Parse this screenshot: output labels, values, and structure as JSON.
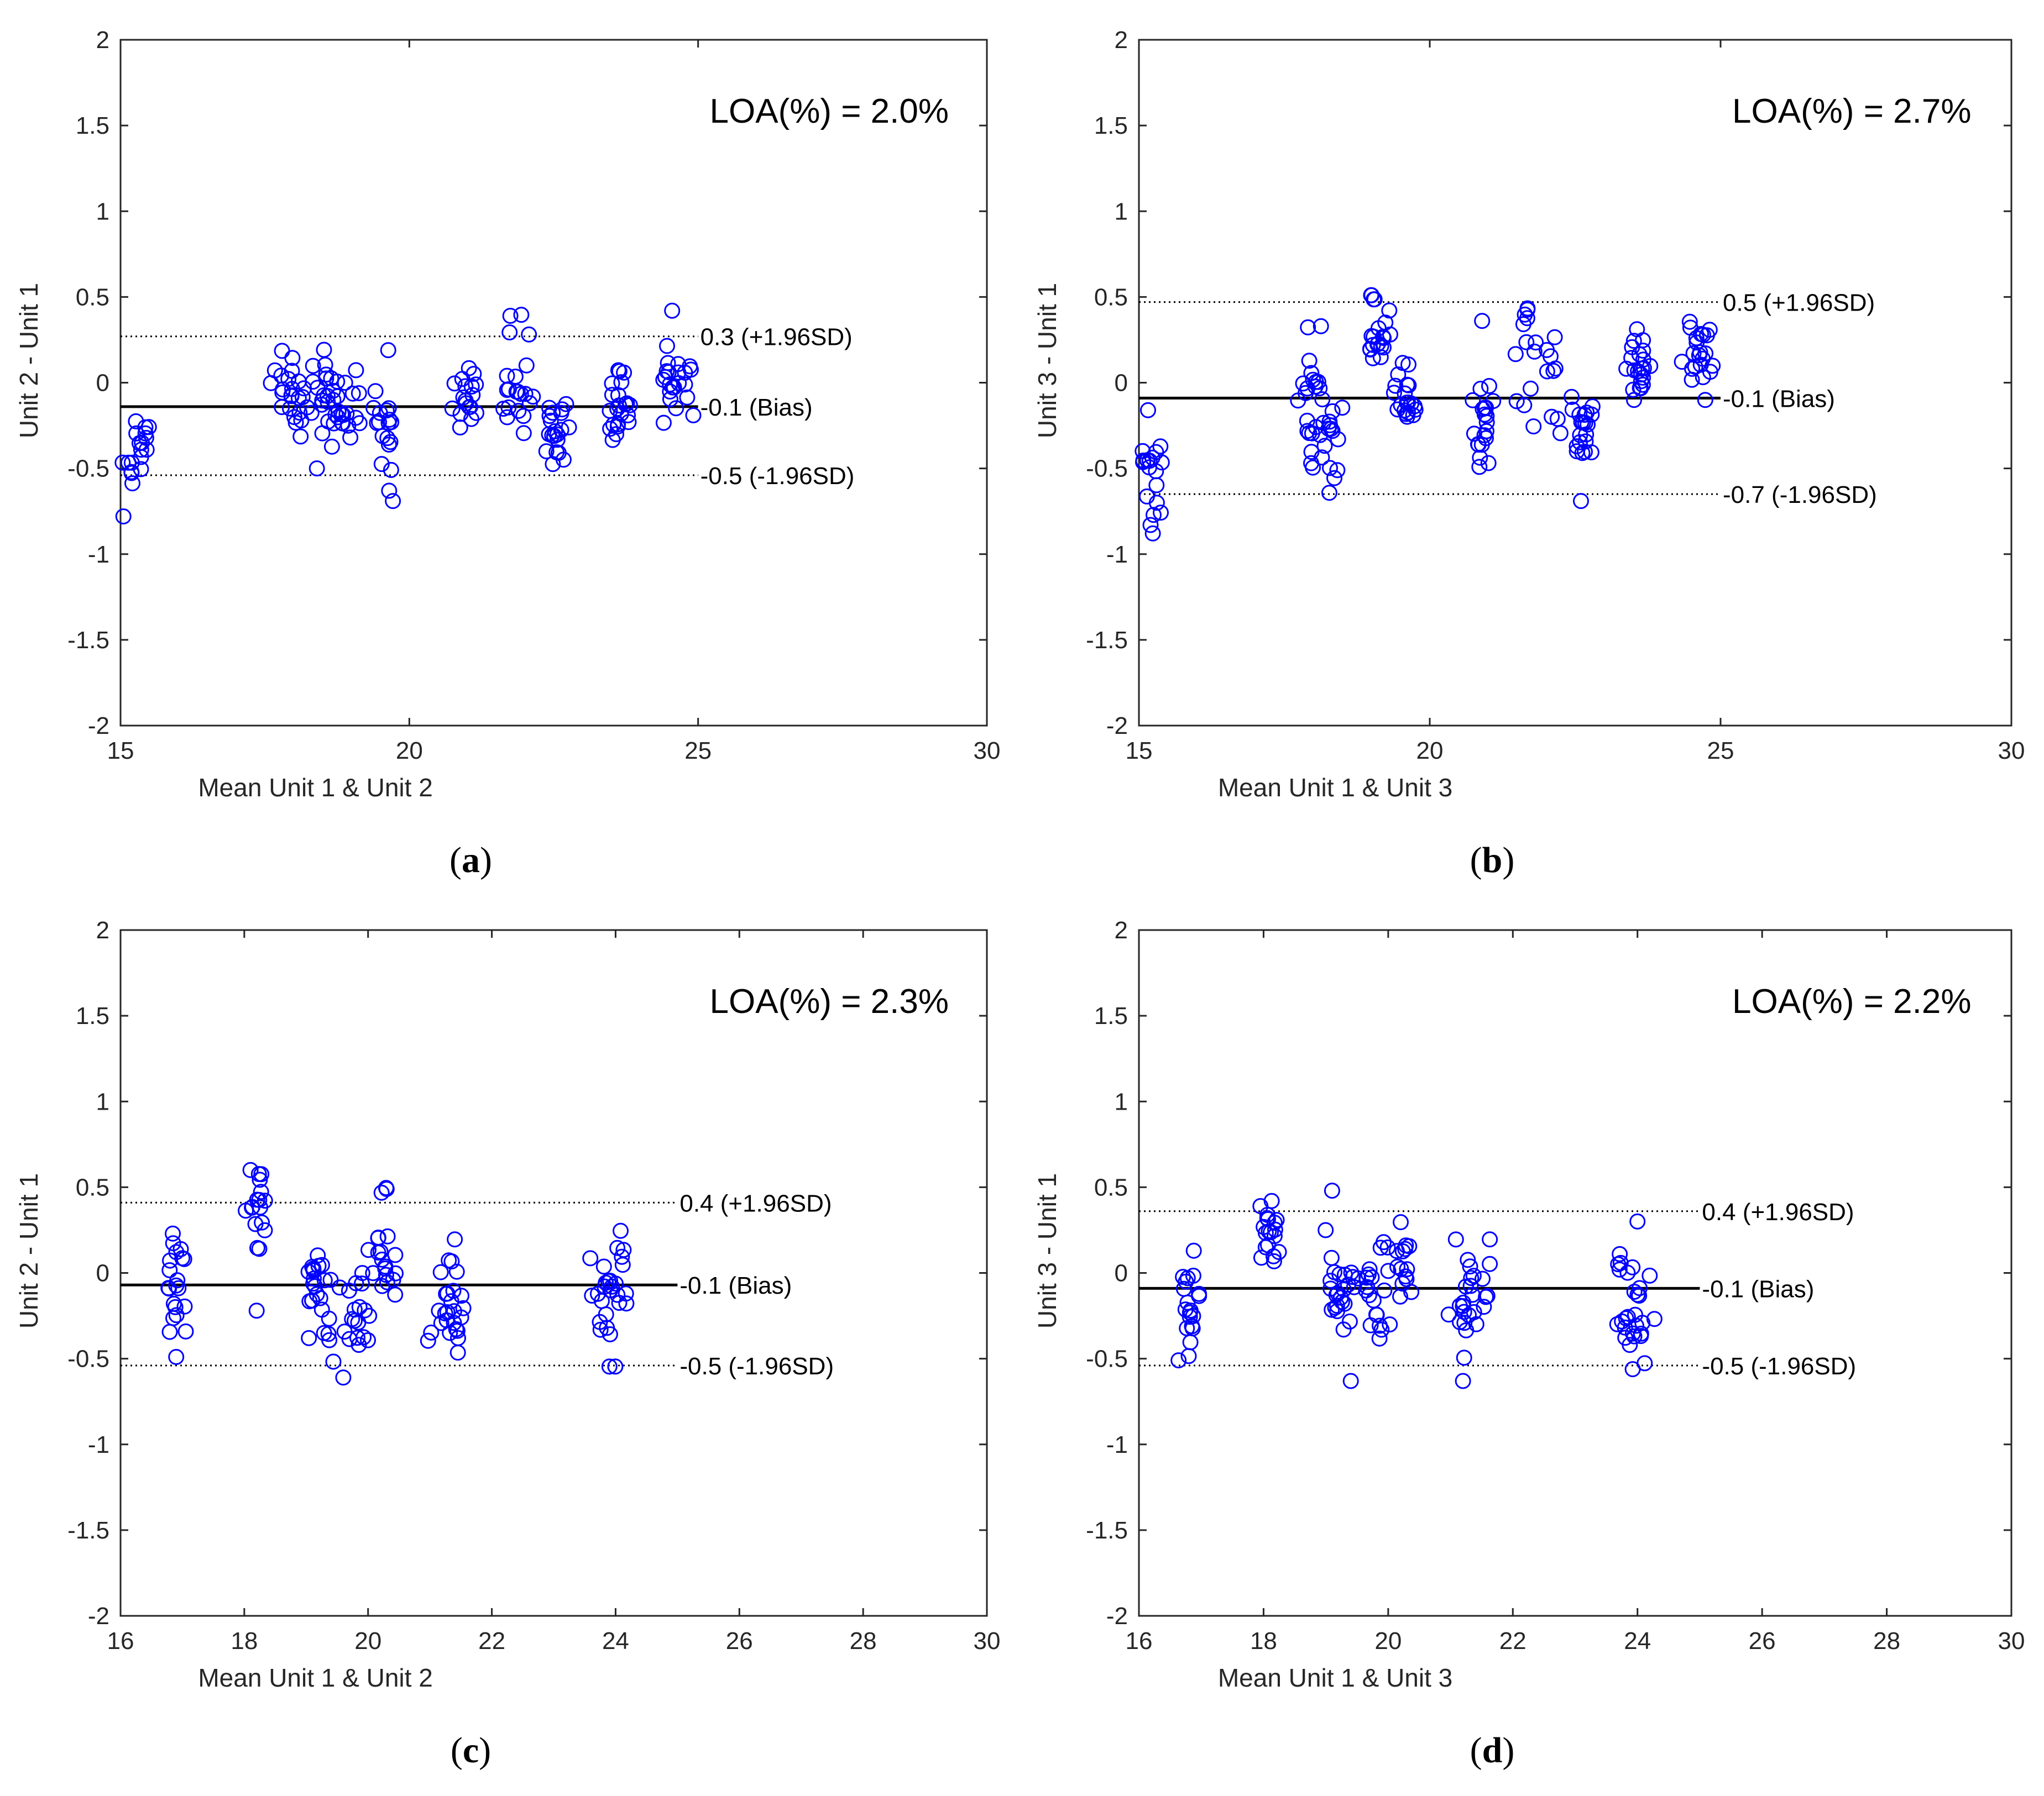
{
  "chart_data": [
    {
      "type": "scatter",
      "panel": "a",
      "caption": "a",
      "annotation": "LOA(%) = 2.0%",
      "xlabel": "Mean Unit 1 & Unit 2",
      "ylabel": "Unit 2 - Unit 1",
      "xlim": [
        15,
        30
      ],
      "ylim": [
        -2,
        2
      ],
      "xticks": [
        "15",
        "20",
        "25",
        "30"
      ],
      "yticks": [
        "-2",
        "-1.5",
        "-1",
        "-0.5",
        "0",
        "0.5",
        "1",
        "1.5",
        "2"
      ],
      "line_end_x": 25,
      "lines": [
        {
          "y": 0.27,
          "style": "dotted",
          "label": "0.3 (+1.96SD)"
        },
        {
          "y": -0.14,
          "style": "solid",
          "label": "-0.1 (Bias)"
        },
        {
          "y": -0.54,
          "style": "dotted",
          "label": "-0.5 (-1.96SD)"
        }
      ],
      "clusters": [
        {
          "x": 15.3,
          "xs": 0.12,
          "y": -0.38,
          "ys": 0.12,
          "n": 18,
          "seed": 11
        },
        {
          "x": 18.0,
          "xs": 0.18,
          "y": -0.05,
          "ys": 0.12,
          "n": 22,
          "seed": 12
        },
        {
          "x": 18.5,
          "xs": 0.2,
          "y": -0.1,
          "ys": 0.14,
          "n": 20,
          "seed": 13
        },
        {
          "x": 19.0,
          "xs": 0.2,
          "y": -0.1,
          "ys": 0.1,
          "n": 20,
          "seed": 14
        },
        {
          "x": 19.6,
          "xs": 0.1,
          "y": -0.25,
          "ys": 0.2,
          "n": 18,
          "seed": 15
        },
        {
          "x": 21.0,
          "xs": 0.12,
          "y": -0.1,
          "ys": 0.1,
          "n": 18,
          "seed": 16
        },
        {
          "x": 21.9,
          "xs": 0.15,
          "y": 0.0,
          "ys": 0.18,
          "n": 20,
          "seed": 17
        },
        {
          "x": 22.5,
          "xs": 0.12,
          "y": -0.33,
          "ys": 0.12,
          "n": 20,
          "seed": 18
        },
        {
          "x": 23.6,
          "xs": 0.1,
          "y": -0.07,
          "ys": 0.12,
          "n": 22,
          "seed": 19
        },
        {
          "x": 24.6,
          "xs": 0.15,
          "y": 0.03,
          "ys": 0.12,
          "n": 22,
          "seed": 20
        }
      ],
      "points": [
        {
          "x": 15.05,
          "y": -0.78
        },
        {
          "x": 21.75,
          "y": 0.39
        },
        {
          "x": 24.55,
          "y": 0.42
        },
        {
          "x": 18.4,
          "y": -0.5
        },
        {
          "x": 19.65,
          "y": -0.63
        }
      ]
    },
    {
      "type": "scatter",
      "panel": "b",
      "caption": "b",
      "annotation": "LOA(%) = 2.7%",
      "xlabel": "Mean Unit 1 & Unit 3",
      "ylabel": "Unit 3 - Unit 1",
      "xlim": [
        15,
        30
      ],
      "ylim": [
        -2,
        2
      ],
      "xticks": [
        "15",
        "20",
        "25",
        "30"
      ],
      "yticks": [
        "-2",
        "-1.5",
        "-1",
        "-0.5",
        "0",
        "0.5",
        "1",
        "1.5",
        "2"
      ],
      "line_end_x": 25,
      "lines": [
        {
          "y": 0.47,
          "style": "dotted",
          "label": "0.5 (+1.96SD)"
        },
        {
          "y": -0.09,
          "style": "solid",
          "label": "-0.1 (Bias)"
        },
        {
          "y": -0.65,
          "style": "dotted",
          "label": "-0.7 (-1.96SD)"
        }
      ],
      "clusters": [
        {
          "x": 15.2,
          "xs": 0.12,
          "y": -0.55,
          "ys": 0.18,
          "n": 18,
          "seed": 31
        },
        {
          "x": 18.0,
          "xs": 0.12,
          "y": -0.1,
          "ys": 0.22,
          "n": 22,
          "seed": 32
        },
        {
          "x": 18.3,
          "xs": 0.1,
          "y": -0.38,
          "ys": 0.15,
          "n": 16,
          "seed": 33
        },
        {
          "x": 19.1,
          "xs": 0.1,
          "y": 0.28,
          "ys": 0.12,
          "n": 20,
          "seed": 34
        },
        {
          "x": 19.6,
          "xs": 0.12,
          "y": -0.12,
          "ys": 0.15,
          "n": 20,
          "seed": 35
        },
        {
          "x": 20.9,
          "xs": 0.1,
          "y": -0.25,
          "ys": 0.12,
          "n": 20,
          "seed": 36
        },
        {
          "x": 21.9,
          "xs": 0.2,
          "y": 0.05,
          "ys": 0.2,
          "n": 22,
          "seed": 37
        },
        {
          "x": 22.6,
          "xs": 0.1,
          "y": -0.25,
          "ys": 0.12,
          "n": 20,
          "seed": 38
        },
        {
          "x": 23.6,
          "xs": 0.1,
          "y": 0.1,
          "ys": 0.1,
          "n": 22,
          "seed": 39
        },
        {
          "x": 24.6,
          "xs": 0.12,
          "y": 0.15,
          "ys": 0.12,
          "n": 22,
          "seed": 40
        }
      ],
      "points": [
        {
          "x": 19.0,
          "y": 0.51
        },
        {
          "x": 20.9,
          "y": 0.36
        },
        {
          "x": 22.6,
          "y": -0.69
        },
        {
          "x": 15.2,
          "y": -0.83
        }
      ]
    },
    {
      "type": "scatter",
      "panel": "c",
      "caption": "c",
      "annotation": "LOA(%) = 2.3%",
      "xlabel": "Mean Unit 1 & Unit 2",
      "ylabel": "Unit 2 - Unit 1",
      "xlim": [
        16,
        30
      ],
      "ylim": [
        -2,
        2
      ],
      "xticks": [
        "16",
        "18",
        "20",
        "22",
        "24",
        "26",
        "28",
        "30"
      ],
      "yticks": [
        "-2",
        "-1.5",
        "-1",
        "-0.5",
        "0",
        "0.5",
        "1",
        "1.5",
        "2"
      ],
      "line_end_x": 25,
      "lines": [
        {
          "y": 0.41,
          "style": "dotted",
          "label": "0.4 (+1.96SD)"
        },
        {
          "y": -0.07,
          "style": "solid",
          "label": "-0.1 (Bias)"
        },
        {
          "y": -0.54,
          "style": "dotted",
          "label": "-0.5 (-1.96SD)"
        }
      ],
      "clusters": [
        {
          "x": 16.9,
          "xs": 0.1,
          "y": -0.05,
          "ys": 0.2,
          "n": 20,
          "seed": 51
        },
        {
          "x": 18.2,
          "xs": 0.08,
          "y": 0.38,
          "ys": 0.12,
          "n": 16,
          "seed": 52
        },
        {
          "x": 19.2,
          "xs": 0.12,
          "y": -0.05,
          "ys": 0.15,
          "n": 22,
          "seed": 53
        },
        {
          "x": 19.8,
          "xs": 0.2,
          "y": -0.15,
          "ys": 0.2,
          "n": 24,
          "seed": 54
        },
        {
          "x": 20.3,
          "xs": 0.12,
          "y": 0.1,
          "ys": 0.18,
          "n": 16,
          "seed": 55
        },
        {
          "x": 21.3,
          "xs": 0.15,
          "y": -0.2,
          "ys": 0.18,
          "n": 26,
          "seed": 56
        },
        {
          "x": 23.9,
          "xs": 0.18,
          "y": -0.15,
          "ys": 0.18,
          "n": 28,
          "seed": 57
        }
      ],
      "points": [
        {
          "x": 18.1,
          "y": 0.6
        },
        {
          "x": 19.6,
          "y": -0.61
        },
        {
          "x": 20.3,
          "y": 0.49
        },
        {
          "x": 18.2,
          "y": -0.22
        },
        {
          "x": 16.9,
          "y": -0.49
        }
      ]
    },
    {
      "type": "scatter",
      "panel": "d",
      "caption": "d",
      "annotation": "LOA(%) = 2.2%",
      "xlabel": "Mean Unit 1 & Unit 3",
      "ylabel": "Unit 3 - Unit 1",
      "xlim": [
        16,
        30
      ],
      "ylim": [
        -2,
        2
      ],
      "xticks": [
        "16",
        "18",
        "20",
        "22",
        "24",
        "26",
        "28",
        "30"
      ],
      "yticks": [
        "-2",
        "-1.5",
        "-1",
        "-0.5",
        "0",
        "0.5",
        "1",
        "1.5",
        "2"
      ],
      "line_end_x": 25,
      "lines": [
        {
          "y": 0.36,
          "style": "dotted",
          "label": "0.4 (+1.96SD)"
        },
        {
          "y": -0.09,
          "style": "solid",
          "label": "-0.1 (Bias)"
        },
        {
          "y": -0.54,
          "style": "dotted",
          "label": "-0.5 (-1.96SD)"
        }
      ],
      "clusters": [
        {
          "x": 16.85,
          "xs": 0.1,
          "y": -0.2,
          "ys": 0.15,
          "n": 20,
          "seed": 71
        },
        {
          "x": 18.1,
          "xs": 0.1,
          "y": 0.2,
          "ys": 0.1,
          "n": 18,
          "seed": 72
        },
        {
          "x": 19.2,
          "xs": 0.12,
          "y": 0.0,
          "ys": 0.15,
          "n": 20,
          "seed": 73
        },
        {
          "x": 19.7,
          "xs": 0.2,
          "y": -0.15,
          "ys": 0.15,
          "n": 22,
          "seed": 74
        },
        {
          "x": 20.2,
          "xs": 0.12,
          "y": 0.1,
          "ys": 0.12,
          "n": 16,
          "seed": 75
        },
        {
          "x": 21.3,
          "xs": 0.15,
          "y": -0.2,
          "ys": 0.18,
          "n": 26,
          "seed": 76
        },
        {
          "x": 23.9,
          "xs": 0.18,
          "y": -0.2,
          "ys": 0.2,
          "n": 28,
          "seed": 77
        }
      ],
      "points": [
        {
          "x": 19.1,
          "y": 0.48
        },
        {
          "x": 19.4,
          "y": -0.63
        },
        {
          "x": 21.2,
          "y": -0.63
        },
        {
          "x": 17.95,
          "y": 0.39
        },
        {
          "x": 24.0,
          "y": 0.3
        }
      ]
    }
  ],
  "style": {
    "marker_color": "#0000ff",
    "axis_color": "#262626",
    "line_color": "#000000",
    "background": "#ffffff"
  }
}
